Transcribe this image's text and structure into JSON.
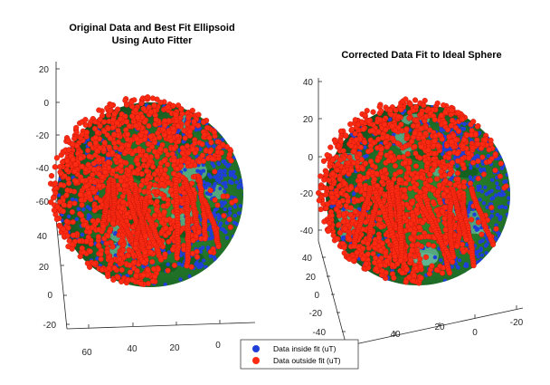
{
  "chart_data": [
    {
      "type": "scatter",
      "projection": "3d",
      "title_lines": [
        "Original Data and Best Fit Ellipsoid",
        "Using Auto Fitter"
      ],
      "axes": {
        "z_ticks": [
          "20",
          "0",
          "-20",
          "-40",
          "-60"
        ],
        "y_ticks": [
          "40",
          "20",
          "0",
          "-20"
        ],
        "x_ticks": [
          "60",
          "40",
          "20",
          "0"
        ]
      },
      "surface": "ellipsoid",
      "series": [
        {
          "name": "Data inside fit (uT)",
          "color": "#1f3fd8"
        },
        {
          "name": "Data outside fit (uT)",
          "color": "#ff2a12"
        }
      ]
    },
    {
      "type": "scatter",
      "projection": "3d",
      "title_lines": [
        "Corrected Data Fit to Ideal Sphere"
      ],
      "axes": {
        "z_ticks": [
          "40",
          "20",
          "0",
          "-20",
          "-40"
        ],
        "y_ticks": [
          "40",
          "20",
          "0",
          "-20",
          "-40"
        ],
        "x_ticks": [
          "40",
          "20",
          "0",
          "-20",
          "-40"
        ]
      },
      "surface": "sphere",
      "series": [
        {
          "name": "Data inside fit (uT)",
          "color": "#1f3fd8"
        },
        {
          "name": "Data outside fit (uT)",
          "color": "#ff2a12"
        }
      ]
    }
  ],
  "legend": {
    "placement": "bottom-center",
    "items": [
      {
        "label": "Data inside fit (uT)",
        "color": "#1f3fd8"
      },
      {
        "label": "Data outside fit (uT)",
        "color": "#ff2a12"
      }
    ]
  },
  "colors": {
    "sphere_green": "#1f7a24",
    "sphere_dark_green": "#0f5a1e",
    "sphere_light": "#66b89a",
    "inside": "#1f3fd8",
    "outside": "#ff2a12",
    "outside_edge": "#b8150a"
  }
}
